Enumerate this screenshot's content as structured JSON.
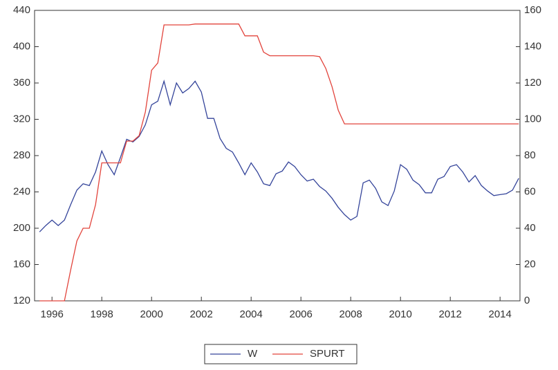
{
  "chart_data": {
    "type": "line",
    "x": [
      1995.5,
      1995.75,
      1996,
      1996.25,
      1996.5,
      1996.75,
      1997,
      1997.25,
      1997.5,
      1997.75,
      1998,
      1998.25,
      1998.5,
      1998.75,
      1999,
      1999.25,
      1999.5,
      1999.75,
      2000,
      2000.25,
      2000.5,
      2000.75,
      2001,
      2001.25,
      2001.5,
      2001.75,
      2002,
      2002.25,
      2002.5,
      2002.75,
      2003,
      2003.25,
      2003.5,
      2003.75,
      2004,
      2004.25,
      2004.5,
      2004.75,
      2005,
      2005.25,
      2005.5,
      2005.75,
      2006,
      2006.25,
      2006.5,
      2006.75,
      2007,
      2007.25,
      2007.5,
      2007.75,
      2008,
      2008.25,
      2008.5,
      2008.75,
      2009,
      2009.25,
      2009.5,
      2009.75,
      2010,
      2010.25,
      2010.5,
      2010.75,
      2011,
      2011.25,
      2011.5,
      2011.75,
      2012,
      2012.25,
      2012.5,
      2012.75,
      2013,
      2013.25,
      2013.5,
      2013.75,
      2014,
      2014.25,
      2014.5,
      2014.75
    ],
    "series": [
      {
        "name": "W",
        "color": "#34449a",
        "axis": "y",
        "values": [
          196,
          203,
          209,
          203,
          209,
          226,
          242,
          249,
          247,
          262,
          285,
          270,
          259,
          278,
          298,
          295,
          301,
          314,
          336,
          340,
          362,
          336,
          360,
          349,
          354,
          362,
          350,
          321,
          321,
          299,
          288,
          284,
          272,
          259,
          272,
          262,
          249,
          247,
          260,
          263,
          273,
          268,
          259,
          252,
          254,
          246,
          241,
          233,
          223,
          215,
          209,
          213,
          250,
          253,
          244,
          229,
          225,
          241,
          270,
          265,
          253,
          248,
          239,
          239,
          254,
          257,
          268,
          270,
          262,
          251,
          258,
          247,
          241,
          236,
          237,
          238,
          242,
          255
        ]
      },
      {
        "name": "SPURT",
        "color": "#e2433b",
        "axis": "y2",
        "values": [
          0,
          0,
          0,
          0,
          0,
          17,
          33,
          40,
          40,
          53,
          76,
          76,
          76,
          76,
          88,
          88,
          91,
          104,
          127,
          131,
          152,
          152,
          152,
          152,
          152,
          152.5,
          152.5,
          152.5,
          152.5,
          152.5,
          152.5,
          152.5,
          152.5,
          146,
          146,
          146,
          137,
          135,
          135,
          135,
          135,
          135,
          135,
          135,
          135,
          134.5,
          128,
          118,
          105,
          97.5,
          97.5,
          97.5,
          97.5,
          97.5,
          97.5,
          97.5,
          97.5,
          97.5,
          97.5,
          97.5,
          97.5,
          97.5,
          97.5,
          97.5,
          97.5,
          97.5,
          97.5,
          97.5,
          97.5,
          97.5,
          97.5,
          97.5,
          97.5,
          97.5,
          97.5,
          97.5,
          97.5,
          97.5
        ]
      }
    ],
    "xlim": [
      1995.3,
      2014.8
    ],
    "xticks": [
      1996,
      1998,
      2000,
      2002,
      2004,
      2006,
      2008,
      2010,
      2012,
      2014
    ],
    "ylim": [
      120,
      440
    ],
    "yticks": [
      120,
      160,
      200,
      240,
      280,
      320,
      360,
      400,
      440
    ],
    "y2lim": [
      0,
      160
    ],
    "y2ticks": [
      0,
      20,
      40,
      60,
      80,
      100,
      120,
      140,
      160
    ],
    "legend": "bottom"
  }
}
